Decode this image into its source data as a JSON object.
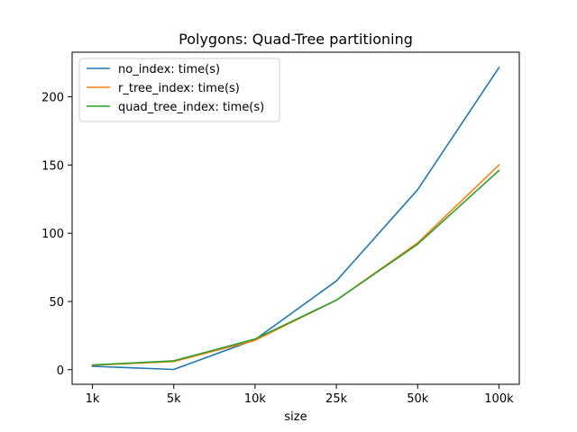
{
  "chart_data": {
    "type": "line",
    "title": "Polygons: Quad-Tree partitioning",
    "xlabel": "size",
    "ylabel": "",
    "categories": [
      "1k",
      "5k",
      "10k",
      "25k",
      "50k",
      "100k"
    ],
    "yticks": [
      0,
      50,
      100,
      150,
      200
    ],
    "ylim": [
      -10.7,
      232.7
    ],
    "grid": false,
    "legend_position": "top-left",
    "series": [
      {
        "name": "no_index: time(s)",
        "color": "#1f77b4",
        "values": [
          2.5,
          0.2,
          22.0,
          65.0,
          132.0,
          221.5
        ]
      },
      {
        "name": "r_tree_index: time(s)",
        "color": "#ff7f0e",
        "values": [
          3.2,
          6.0,
          21.5,
          51.0,
          93.0,
          150.0
        ]
      },
      {
        "name": "quad_tree_index: time(s)",
        "color": "#2ca02c",
        "values": [
          3.5,
          6.5,
          22.5,
          51.0,
          92.0,
          146.0
        ]
      }
    ]
  }
}
